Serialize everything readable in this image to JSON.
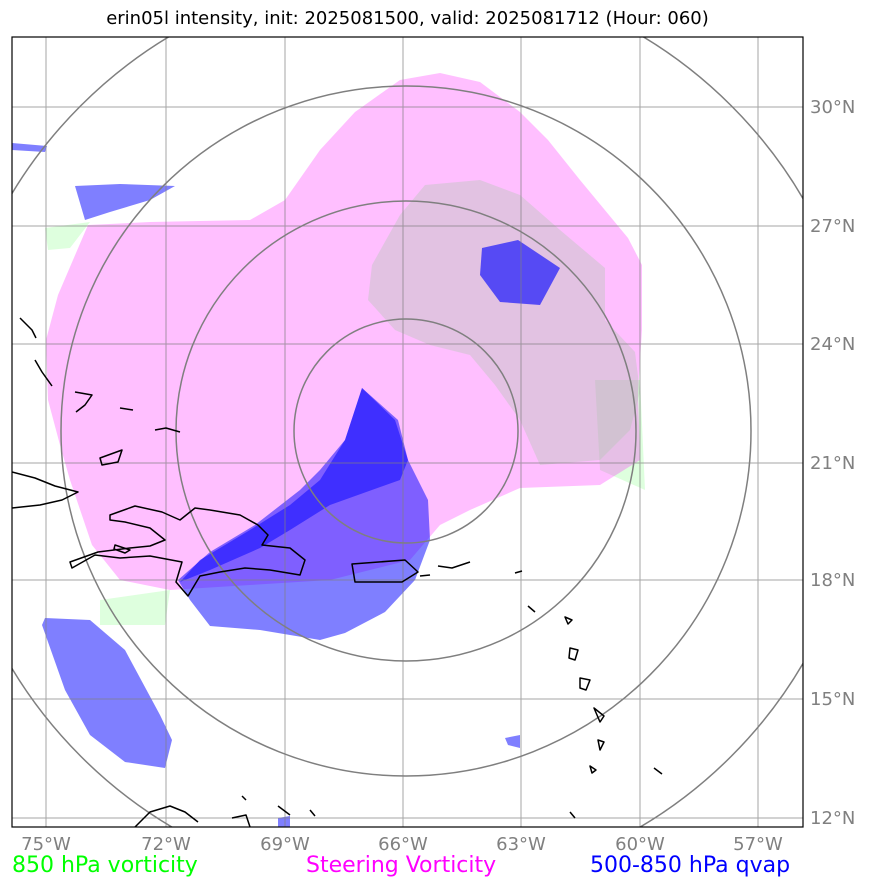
{
  "title": "erin05l intensity, init: 2025081500, valid: 2025081712 (Hour: 060)",
  "map": {
    "lon_labels": [
      "75°W",
      "72°W",
      "69°W",
      "66°W",
      "63°W",
      "60°W",
      "57°W"
    ],
    "lat_labels": [
      "30°N",
      "27°N",
      "24°N",
      "21°N",
      "18°N",
      "15°N",
      "12°N"
    ],
    "storm_center": {
      "lat": 21.1,
      "lon": -66.0
    },
    "range_rings": 4
  },
  "legend": {
    "vort850": "850 hPa vorticity",
    "steering": "Steering Vorticity",
    "qvap": "500-850 hPa qvap"
  },
  "colors": {
    "vort850": "#00ff00",
    "steering": "#ff00ff",
    "qvap": "#0000ff",
    "grid": "#808080"
  }
}
